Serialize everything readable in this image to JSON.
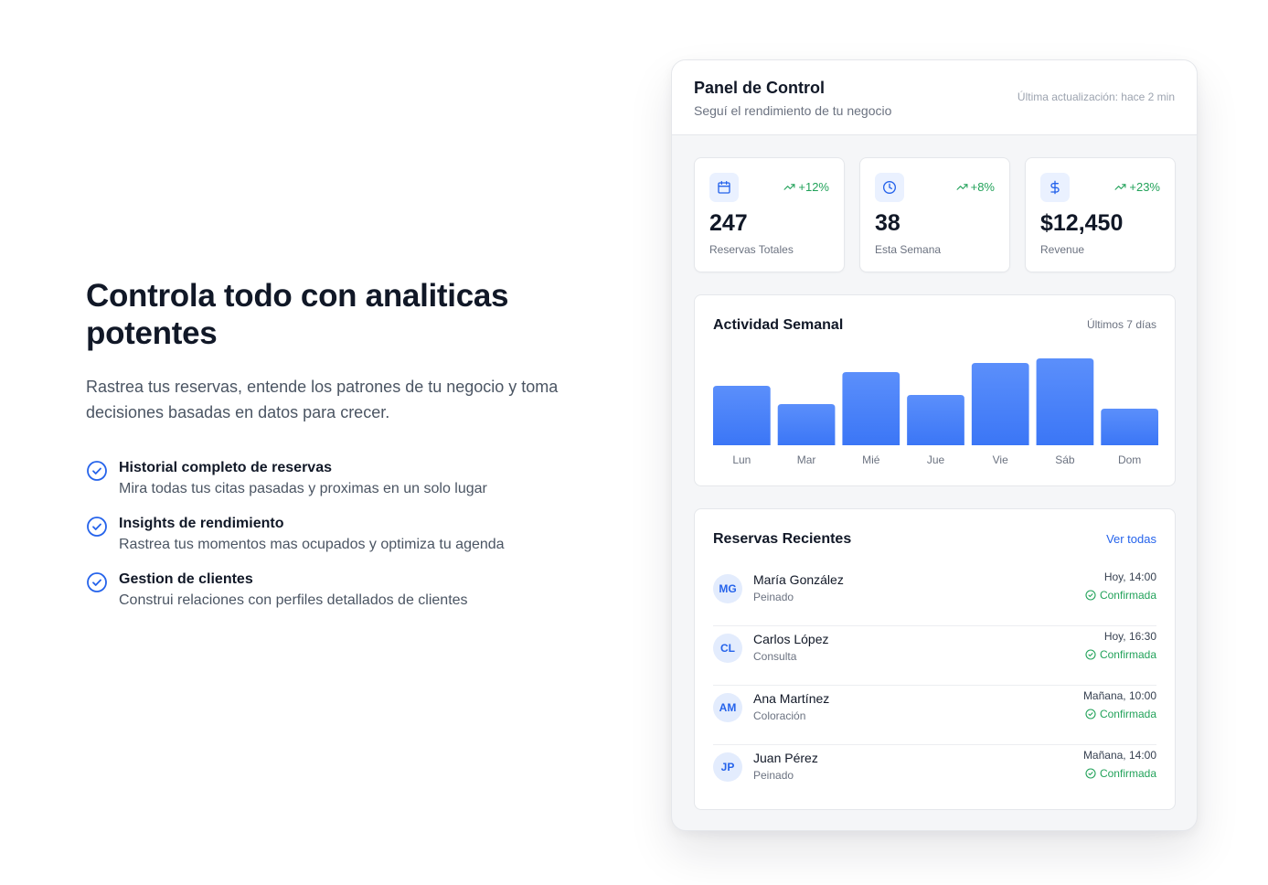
{
  "hero": {
    "headline": "Controla todo con analiticas potentes",
    "lead": "Rastrea tus reservas, entende los patrones de tu negocio y toma decisiones basadas en datos para crecer.",
    "features": [
      {
        "title": "Historial completo de reservas",
        "desc": "Mira todas tus citas pasadas y proximas en un solo lugar"
      },
      {
        "title": "Insights de rendimiento",
        "desc": "Rastrea tus momentos mas ocupados y optimiza tu agenda"
      },
      {
        "title": "Gestion de clientes",
        "desc": "Construi relaciones con perfiles detallados de clientes"
      }
    ]
  },
  "panel": {
    "title": "Panel de Control",
    "subtitle": "Seguí el rendimiento de tu negocio",
    "updated": "Última actualización: hace 2 min"
  },
  "stats": [
    {
      "icon": "calendar-icon",
      "trend": "+12%",
      "value": "247",
      "label": "Reservas Totales"
    },
    {
      "icon": "clock-icon",
      "trend": "+8%",
      "value": "38",
      "label": "Esta Semana"
    },
    {
      "icon": "dollar-icon",
      "trend": "+23%",
      "value": "$12,450",
      "label": "Revenue"
    }
  ],
  "chart": {
    "title": "Actividad Semanal",
    "range": "Últimos 7 días"
  },
  "chart_data": {
    "type": "bar",
    "categories": [
      "Lun",
      "Mar",
      "Mié",
      "Jue",
      "Vie",
      "Sáb",
      "Dom"
    ],
    "values": [
      65,
      45,
      80,
      55,
      90,
      95,
      40
    ],
    "ylim": [
      0,
      100
    ],
    "grid": false,
    "bar_color_top": "#5b8ffb",
    "bar_color_bottom": "#3b76f6"
  },
  "recent": {
    "title": "Reservas Recientes",
    "link": "Ver todas",
    "items": [
      {
        "initials": "MG",
        "name": "María González",
        "service": "Peinado",
        "time": "Hoy, 14:00",
        "status": "Confirmada"
      },
      {
        "initials": "CL",
        "name": "Carlos López",
        "service": "Consulta",
        "time": "Hoy, 16:30",
        "status": "Confirmada"
      },
      {
        "initials": "AM",
        "name": "Ana Martínez",
        "service": "Coloración",
        "time": "Mañana, 10:00",
        "status": "Confirmada"
      },
      {
        "initials": "JP",
        "name": "Juan Pérez",
        "service": "Peinado",
        "time": "Mañana, 14:00",
        "status": "Confirmada"
      }
    ]
  },
  "colors": {
    "accent": "#2563eb",
    "success": "#22a25a",
    "text": "#111827",
    "muted": "#6b7280"
  }
}
